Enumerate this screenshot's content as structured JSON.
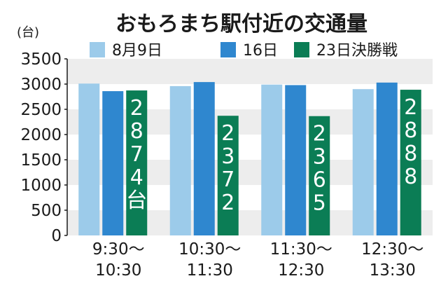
{
  "title": "おもろまち駅付近の交通量",
  "unit_label": "(台)",
  "chart_data": {
    "type": "bar",
    "title": "おもろまち駅付近の交通量",
    "ylabel": "(台)",
    "ylim": [
      0,
      3500
    ],
    "yticks": [
      0,
      500,
      1000,
      1500,
      2000,
      2500,
      3000,
      3500
    ],
    "grid": "alternating horizontal bands",
    "legend_position": "top",
    "categories": [
      [
        "9:30〜",
        "10:30"
      ],
      [
        "10:30〜",
        "11:30"
      ],
      [
        "11:30〜",
        "12:30"
      ],
      [
        "12:30〜",
        "13:30"
      ]
    ],
    "series": [
      {
        "name": "8月9日",
        "color": "#9ccbea",
        "values": [
          3010,
          2960,
          2990,
          2900
        ],
        "labels": [
          "",
          "",
          "",
          ""
        ]
      },
      {
        "name": "16日",
        "color": "#2f87cf",
        "values": [
          2860,
          3040,
          2980,
          3030
        ],
        "labels": [
          "",
          "",
          "",
          ""
        ]
      },
      {
        "name": "23日決勝戦",
        "color": "#0b7d55",
        "values": [
          2874,
          2372,
          2365,
          2888
        ],
        "labels": [
          "2874台",
          "2372",
          "2365",
          "2888"
        ]
      }
    ]
  }
}
